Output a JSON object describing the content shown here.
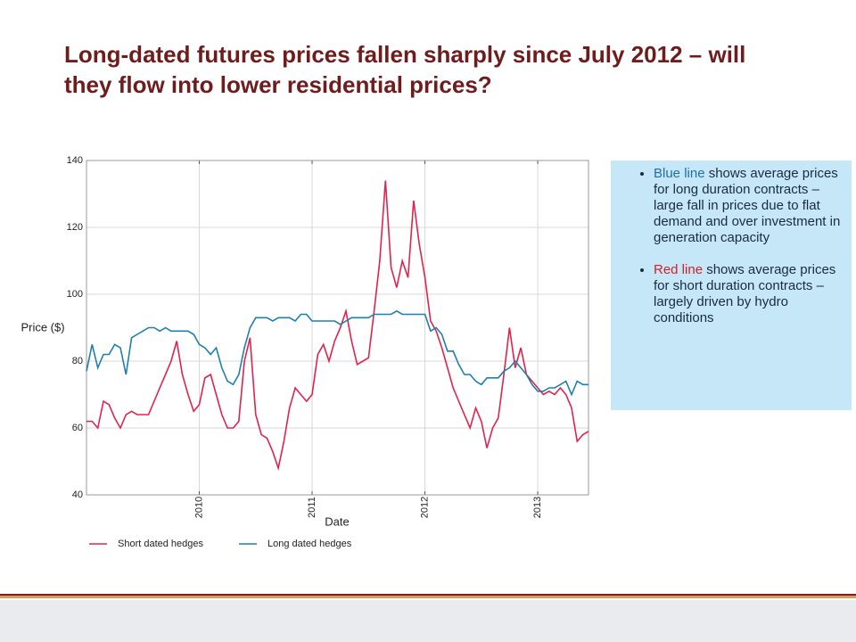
{
  "slide": {
    "title": "Long-dated futures prices fallen sharply since July 2012 – will they flow into lower residential prices?",
    "bullets": [
      {
        "lead": "Blue line",
        "text": " shows average prices for long duration contracts – large fall in prices due to flat demand and over investment in generation capacity"
      },
      {
        "lead": "Red line",
        "text": " shows average prices for short duration contracts – largely driven by hydro conditions"
      }
    ]
  },
  "chart_data": {
    "type": "line",
    "x_label": "Date",
    "y_label": "Price ($)",
    "x": [
      2009.0,
      2009.05,
      2009.1,
      2009.15,
      2009.2,
      2009.25,
      2009.3,
      2009.35,
      2009.4,
      2009.45,
      2009.5,
      2009.55,
      2009.6,
      2009.65,
      2009.7,
      2009.75,
      2009.8,
      2009.85,
      2009.9,
      2009.95,
      2010.0,
      2010.05,
      2010.1,
      2010.15,
      2010.2,
      2010.25,
      2010.3,
      2010.35,
      2010.4,
      2010.45,
      2010.5,
      2010.55,
      2010.6,
      2010.65,
      2010.7,
      2010.75,
      2010.8,
      2010.85,
      2010.9,
      2010.95,
      2011.0,
      2011.05,
      2011.1,
      2011.15,
      2011.2,
      2011.25,
      2011.3,
      2011.35,
      2011.4,
      2011.45,
      2011.5,
      2011.55,
      2011.6,
      2011.65,
      2011.7,
      2011.75,
      2011.8,
      2011.85,
      2011.9,
      2011.95,
      2012.0,
      2012.05,
      2012.1,
      2012.15,
      2012.2,
      2012.25,
      2012.3,
      2012.35,
      2012.4,
      2012.45,
      2012.5,
      2012.55,
      2012.6,
      2012.65,
      2012.7,
      2012.75,
      2012.8,
      2012.85,
      2012.9,
      2012.95,
      2013.0,
      2013.05,
      2013.1,
      2013.15,
      2013.2,
      2013.25,
      2013.3,
      2013.35,
      2013.4,
      2013.45
    ],
    "series": [
      {
        "name": "Short dated hedges",
        "color": "#e0234e",
        "values": [
          62,
          62,
          60,
          68,
          67,
          63,
          60,
          64,
          65,
          64,
          64,
          64,
          68,
          72,
          76,
          80,
          86,
          76,
          70,
          65,
          67,
          75,
          76,
          70,
          64,
          60,
          60,
          62,
          80,
          87,
          64,
          58,
          57,
          53,
          48,
          56,
          66,
          72,
          70,
          68,
          70,
          82,
          85,
          80,
          86,
          90,
          95,
          86,
          79,
          80,
          81,
          95,
          110,
          134,
          108,
          102,
          110,
          105,
          128,
          115,
          105,
          92,
          89,
          84,
          78,
          72,
          68,
          64,
          60,
          66,
          62,
          54,
          60,
          63,
          76,
          90,
          78,
          84,
          76,
          74,
          72,
          70,
          71,
          70,
          72,
          70,
          66,
          56,
          58,
          59
        ]
      },
      {
        "name": "Long dated hedges",
        "color": "#1f7fb0",
        "values": [
          77,
          85,
          78,
          82,
          82,
          85,
          84,
          76,
          87,
          88,
          89,
          90,
          90,
          89,
          90,
          89,
          89,
          89,
          89,
          88,
          85,
          84,
          82,
          84,
          78,
          74,
          73,
          76,
          84,
          90,
          93,
          93,
          93,
          92,
          93,
          93,
          93,
          92,
          94,
          94,
          92,
          92,
          92,
          92,
          92,
          91,
          92,
          93,
          93,
          93,
          93,
          94,
          94,
          94,
          94,
          95,
          94,
          94,
          94,
          94,
          94,
          89,
          90,
          88,
          83,
          83,
          79,
          76,
          76,
          74,
          73,
          75,
          75,
          75,
          77,
          78,
          80,
          78,
          76,
          73,
          71,
          71,
          72,
          72,
          73,
          74,
          70,
          74,
          73,
          73
        ]
      }
    ],
    "xlim": [
      2009.0,
      2013.45
    ],
    "xticks": [
      2010,
      2011,
      2012,
      2013
    ],
    "ylim": [
      40,
      140
    ],
    "yticks": [
      40,
      60,
      80,
      100,
      120,
      140
    ],
    "grid": true
  }
}
